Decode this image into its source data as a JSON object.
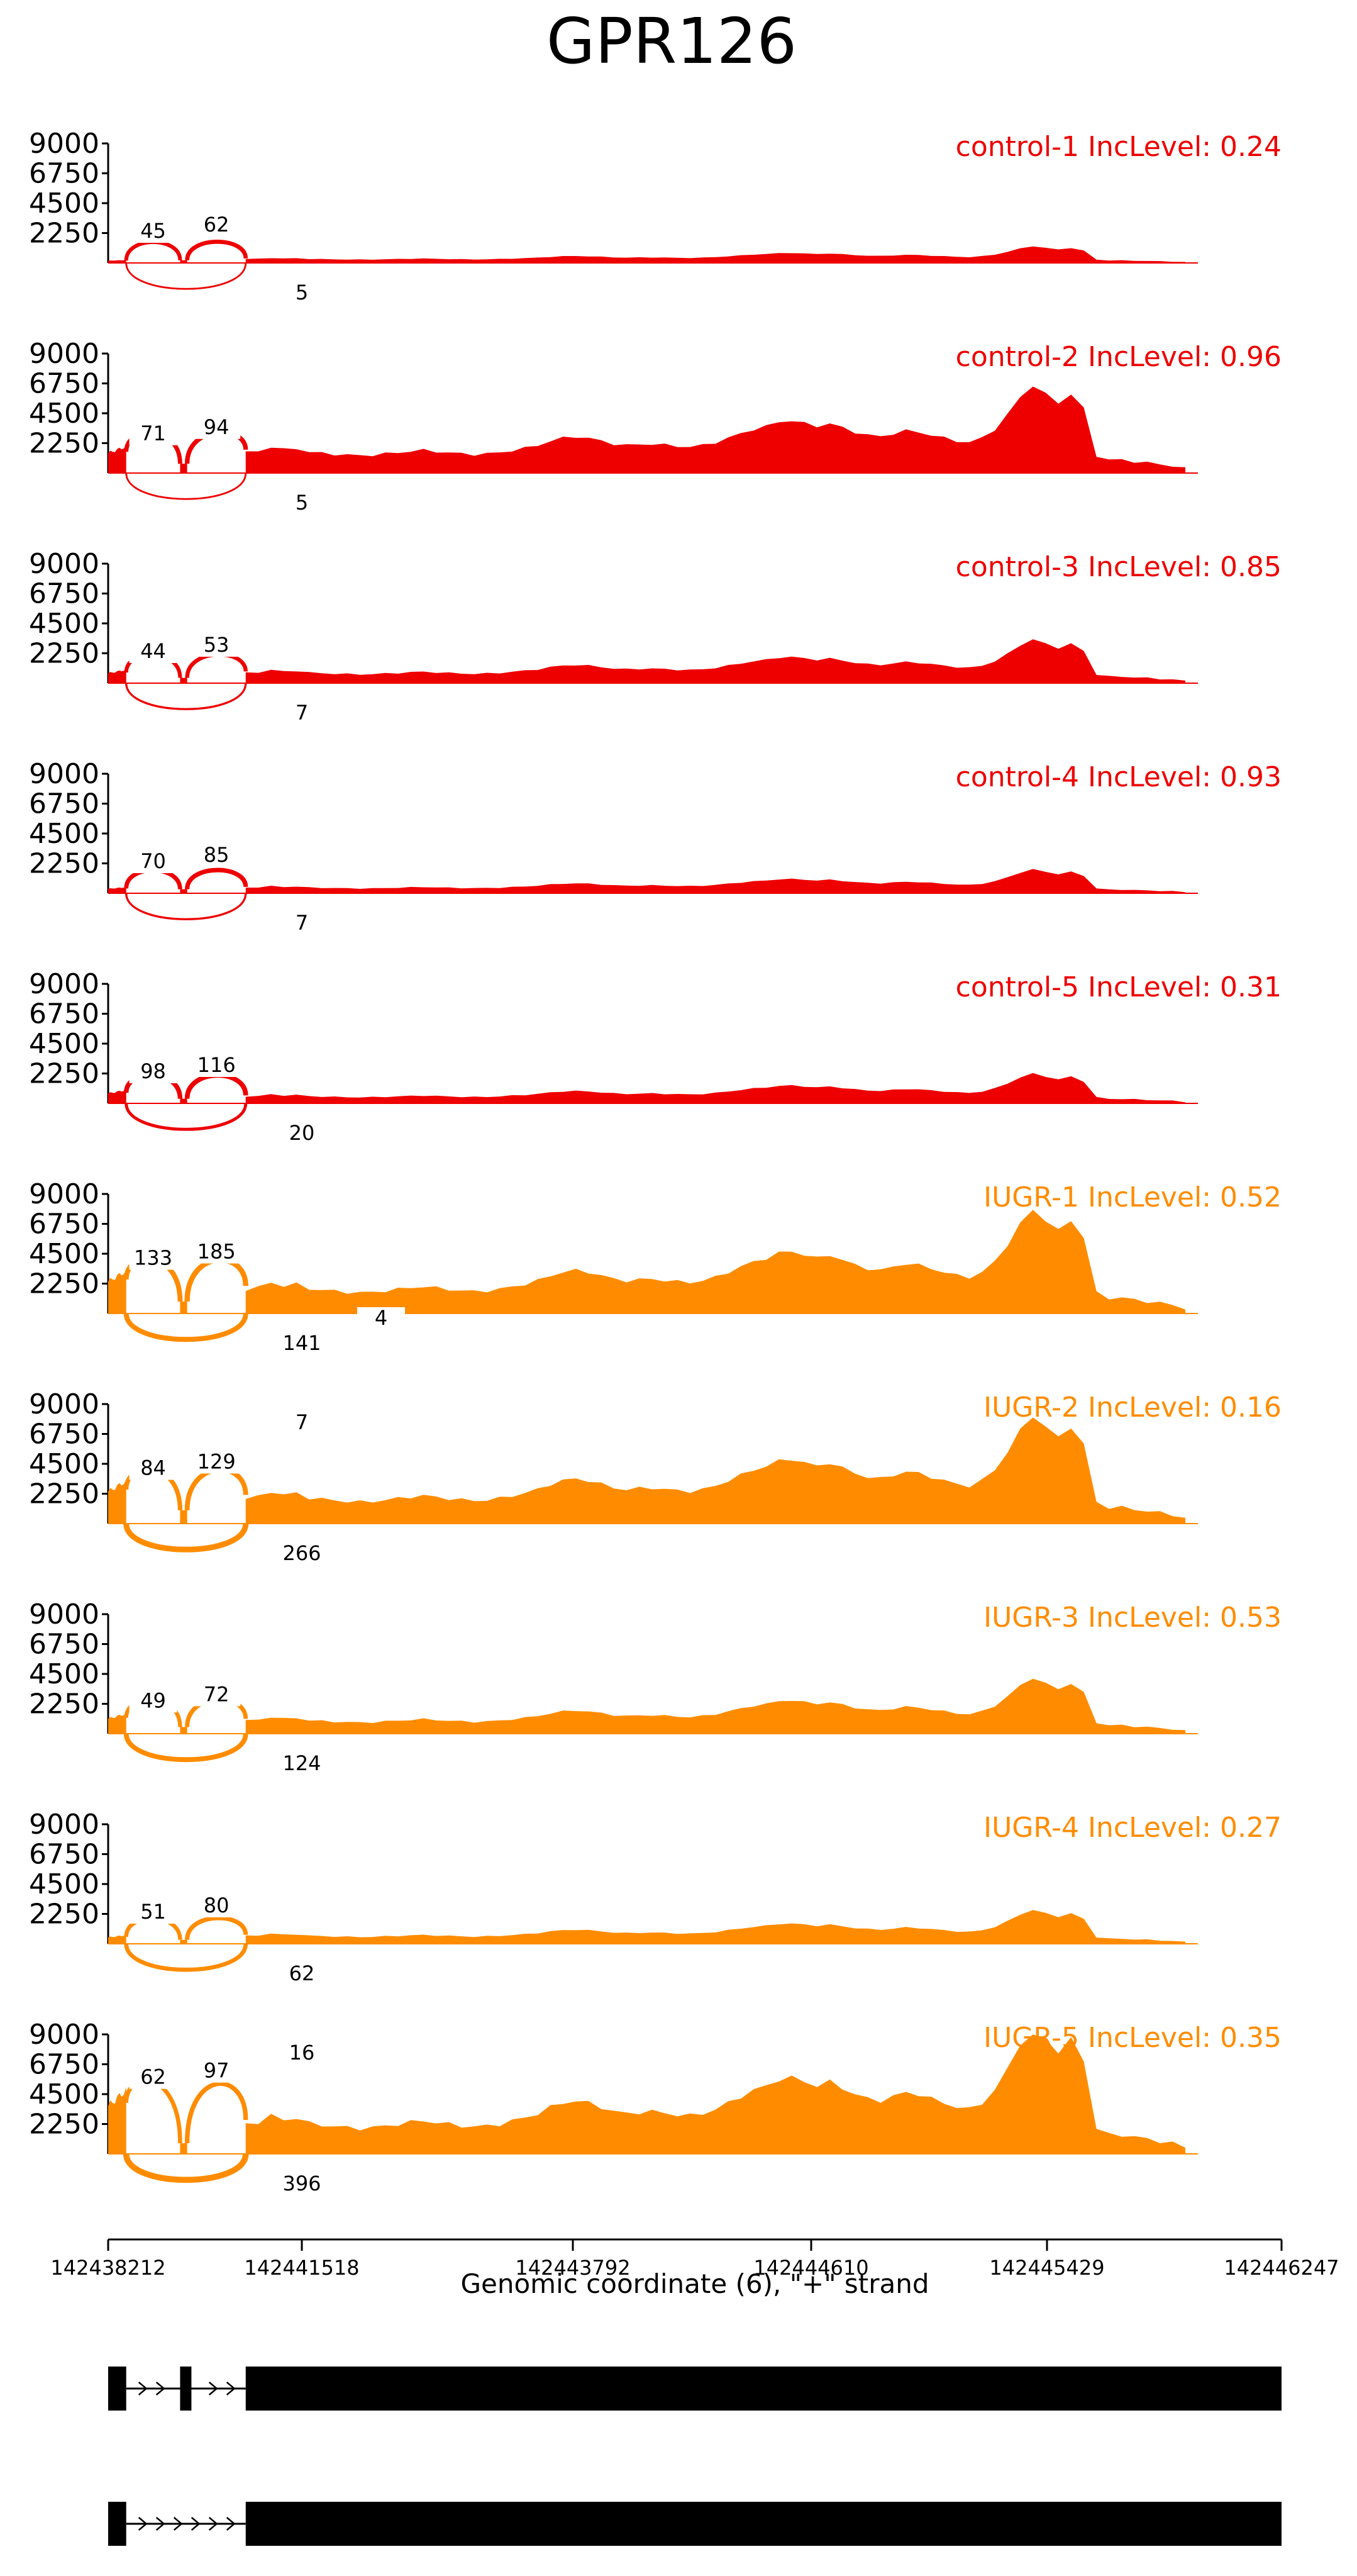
{
  "chart_data": {
    "type": "area",
    "title": "GPR126",
    "xlabel": "Genomic coordinate (6), \"+\" strand",
    "xlim": [
      142438212,
      142446247
    ],
    "xticks": [
      142438212,
      142441518,
      142443792,
      142444610,
      142445429,
      142446247
    ],
    "ylim": [
      0,
      9000
    ],
    "yticks": [
      2250,
      4500,
      6750,
      9000
    ],
    "exons": [
      [
        142438212,
        142438520
      ],
      [
        142439440,
        142439560
      ],
      [
        142440560,
        142446247
      ]
    ],
    "colors": {
      "control": "#ee0000",
      "IUGR": "#ff8c00",
      "gene_model": "#000000"
    },
    "series": [
      {
        "name": "control-1",
        "label": "control-1 IncLevel: 0.24",
        "group": "control",
        "inc_level": 0.24,
        "coverage": {
          "exon1": 220,
          "exon2": 200,
          "exon3_base": 420
        },
        "junctions": {
          "upper_left": 45,
          "upper_right": 62,
          "lower": 5
        }
      },
      {
        "name": "control-2",
        "label": "control-2 IncLevel: 0.96",
        "group": "control",
        "inc_level": 0.96,
        "coverage": {
          "exon1": 2000,
          "exon2": 700,
          "exon3_base": 2200
        },
        "junctions": {
          "upper_left": 71,
          "upper_right": 94,
          "lower": 5
        }
      },
      {
        "name": "control-3",
        "label": "control-3 IncLevel: 0.85",
        "group": "control",
        "inc_level": 0.85,
        "coverage": {
          "exon1": 1000,
          "exon2": 400,
          "exon3_base": 1100
        },
        "junctions": {
          "upper_left": 44,
          "upper_right": 53,
          "lower": 7
        }
      },
      {
        "name": "control-4",
        "label": "control-4 IncLevel: 0.93",
        "group": "control",
        "inc_level": 0.93,
        "coverage": {
          "exon1": 450,
          "exon2": 300,
          "exon3_base": 600
        },
        "junctions": {
          "upper_left": 70,
          "upper_right": 85,
          "lower": 7
        }
      },
      {
        "name": "control-5",
        "label": "control-5 IncLevel: 0.31",
        "group": "control",
        "inc_level": 0.31,
        "coverage": {
          "exon1": 1000,
          "exon2": 350,
          "exon3_base": 750
        },
        "junctions": {
          "upper_left": 98,
          "upper_right": 116,
          "lower": 20
        }
      },
      {
        "name": "IUGR-1",
        "label": "IUGR-1 IncLevel: 0.52",
        "group": "IUGR",
        "inc_level": 0.52,
        "coverage": {
          "exon1": 3200,
          "exon2": 900,
          "exon3_base": 2600
        },
        "junctions": {
          "upper_left": 133,
          "upper_right": 185,
          "lower": 141,
          "lower_extra": 4
        }
      },
      {
        "name": "IUGR-2",
        "label": "IUGR-2 IncLevel: 0.16",
        "group": "IUGR",
        "inc_level": 0.16,
        "coverage": {
          "exon1": 3200,
          "exon2": 1000,
          "exon3_base": 2700
        },
        "junctions": {
          "upper_left": 84,
          "upper_right": 129,
          "lower": 266,
          "top": 7
        }
      },
      {
        "name": "IUGR-3",
        "label": "IUGR-3 IncLevel: 0.53",
        "group": "IUGR",
        "inc_level": 0.53,
        "coverage": {
          "exon1": 1500,
          "exon2": 500,
          "exon3_base": 1400
        },
        "junctions": {
          "upper_left": 49,
          "upper_right": 72,
          "lower": 124
        }
      },
      {
        "name": "IUGR-4",
        "label": "IUGR-4 IncLevel: 0.27",
        "group": "IUGR",
        "inc_level": 0.27,
        "coverage": {
          "exon1": 650,
          "exon2": 300,
          "exon3_base": 850
        },
        "junctions": {
          "upper_left": 51,
          "upper_right": 80,
          "lower": 62
        }
      },
      {
        "name": "IUGR-5",
        "label": "IUGR-5 IncLevel: 0.35",
        "group": "IUGR",
        "inc_level": 0.35,
        "coverage": {
          "exon1": 4800,
          "exon2": 800,
          "exon3_base": 3200
        },
        "junctions": {
          "upper_left": 62,
          "upper_right": 97,
          "lower": 396,
          "top": 16
        }
      }
    ],
    "profile": [
      0.7,
      0.75,
      0.9,
      0.8,
      0.85,
      0.72,
      0.68,
      0.65,
      0.62,
      0.6,
      0.62,
      0.66,
      0.7,
      0.75,
      0.78,
      0.74,
      0.7,
      0.66,
      0.64,
      0.66,
      0.7,
      0.78,
      0.85,
      0.95,
      1.1,
      1.2,
      1.25,
      1.2,
      1.1,
      1.0,
      0.95,
      0.98,
      1.0,
      0.96,
      0.92,
      0.9,
      0.95,
      1.05,
      1.2,
      1.35,
      1.5,
      1.6,
      1.75,
      1.8,
      1.7,
      1.6,
      1.7,
      1.55,
      1.4,
      1.3,
      1.25,
      1.35,
      1.45,
      1.4,
      1.3,
      1.2,
      1.1,
      1.05,
      1.2,
      1.5,
      2.0,
      2.6,
      3.0,
      2.7,
      2.4,
      2.7,
      2.2,
      0.6,
      0.45,
      0.45,
      0.4,
      0.35,
      0.3,
      0.25,
      0.15
    ]
  }
}
